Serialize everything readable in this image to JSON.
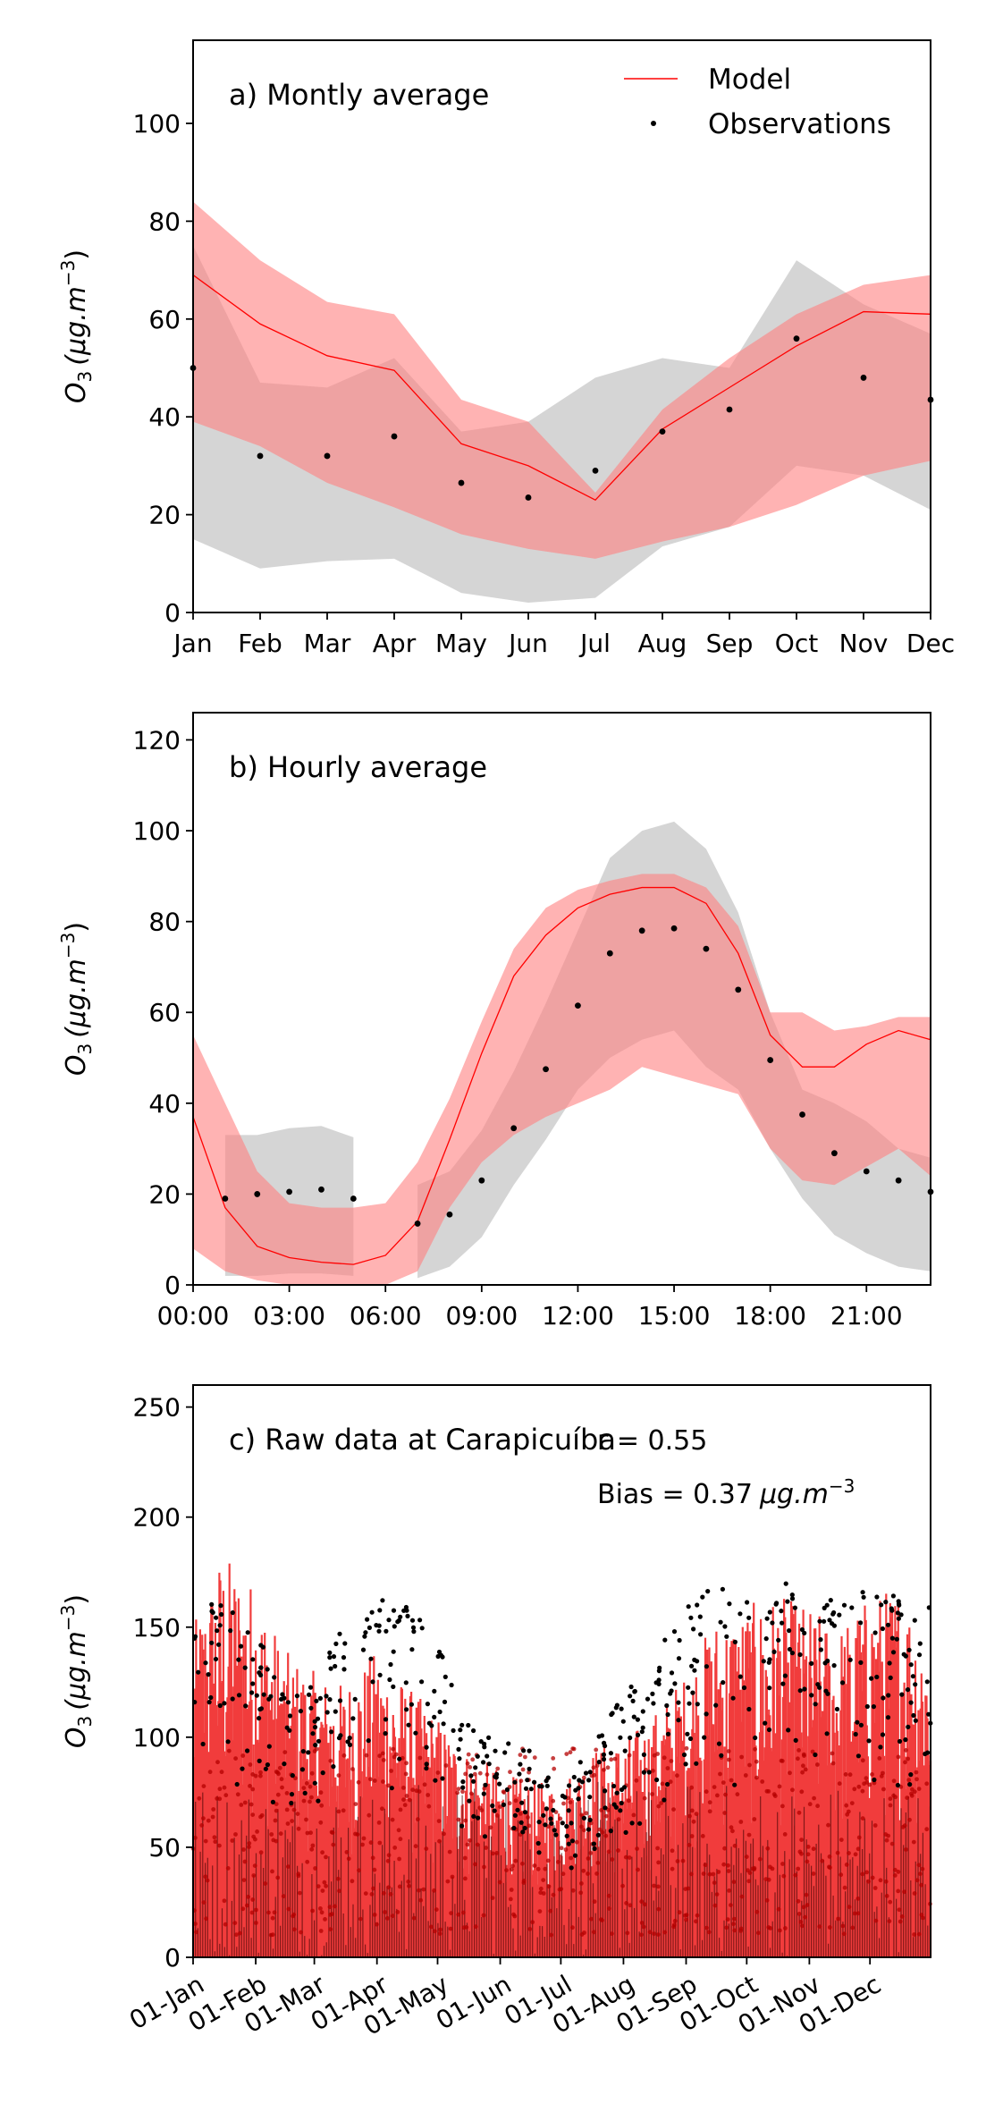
{
  "chart_data": [
    {
      "type": "line",
      "panel_title": "a) Montly average",
      "ylabel_text": "O",
      "ylabel_sub": "3",
      "ylabel_unit": "(μg.m",
      "ylabel_sup": "−3",
      "ylabel_close": ")",
      "ylim": [
        0,
        117
      ],
      "yticks": [
        0,
        20,
        40,
        60,
        80,
        100
      ],
      "categories": [
        "Jan",
        "Feb",
        "Mar",
        "Apr",
        "May",
        "Jun",
        "Jul",
        "Aug",
        "Sep",
        "Oct",
        "Nov",
        "Dec"
      ],
      "legend": {
        "placement": "upper-right",
        "model": "Model",
        "observations": "Observations"
      },
      "model": {
        "mean": [
          69,
          59,
          52.5,
          49.5,
          34.5,
          30,
          23,
          37.5,
          46,
          54.5,
          61.5,
          61
        ],
        "band_upper": [
          84,
          72,
          63.5,
          61,
          43.5,
          39,
          24.5,
          41.5,
          52,
          61,
          67,
          69
        ],
        "band_lower": [
          39,
          34,
          26.5,
          21.5,
          16,
          13,
          11,
          14.5,
          17.5,
          22,
          28,
          31
        ]
      },
      "observations": {
        "mean": [
          50,
          32,
          32,
          36,
          26.5,
          23.5,
          29,
          37,
          41.5,
          56,
          48,
          43.5
        ],
        "band_upper": [
          75,
          47,
          46,
          52,
          37,
          39,
          48,
          52,
          50,
          72,
          63,
          57
        ],
        "band_lower": [
          15,
          9,
          10.5,
          11,
          4,
          2,
          3,
          13.5,
          17.5,
          30,
          28,
          21
        ]
      }
    },
    {
      "type": "line",
      "panel_title": "b) Hourly average",
      "ylabel_text": "O",
      "ylabel_sub": "3",
      "ylabel_unit": "(μg.m",
      "ylabel_sup": "−3",
      "ylabel_close": ")",
      "ylim": [
        0,
        126
      ],
      "yticks": [
        0,
        20,
        40,
        60,
        80,
        100,
        120
      ],
      "xlim": [
        0,
        23
      ],
      "xticks": [
        0,
        3,
        6,
        9,
        12,
        15,
        18,
        21
      ],
      "xtick_labels": [
        "00:00",
        "03:00",
        "06:00",
        "09:00",
        "12:00",
        "15:00",
        "18:00",
        "21:00"
      ],
      "model": {
        "x": [
          0,
          1,
          2,
          3,
          4,
          5,
          6,
          7,
          8,
          9,
          10,
          11,
          12,
          13,
          14,
          15,
          16,
          17,
          18,
          19,
          20,
          21,
          22,
          23
        ],
        "mean": [
          37,
          17,
          8.5,
          6,
          5,
          4.5,
          6.5,
          14,
          32,
          51,
          68,
          77,
          83,
          86,
          87.5,
          87.5,
          84,
          73,
          55,
          48,
          48,
          53,
          56,
          54
        ],
        "band_upper": [
          55,
          40,
          25,
          18,
          17,
          17,
          18,
          27,
          41,
          58,
          74,
          83,
          87,
          89,
          90.5,
          90.5,
          87.5,
          79,
          60,
          60,
          56,
          57,
          59,
          59
        ],
        "band_lower": [
          8,
          3,
          1,
          0,
          0,
          0,
          0,
          3,
          17,
          27,
          33,
          37,
          40,
          43,
          48,
          46,
          44,
          42,
          30,
          23,
          22,
          26,
          30,
          24
        ]
      },
      "observations": {
        "x": [
          1,
          2,
          3,
          4,
          5,
          7,
          8,
          9,
          10,
          11,
          12,
          13,
          14,
          15,
          16,
          17,
          18,
          19,
          20,
          21,
          22,
          23
        ],
        "mean": [
          19,
          20,
          20.5,
          21,
          19,
          13.5,
          15.5,
          23,
          34.5,
          47.5,
          61.5,
          73,
          78,
          78.5,
          74,
          65,
          49.5,
          37.5,
          29,
          25,
          23,
          20.5
        ],
        "band_upper": [
          33,
          33,
          34.5,
          35,
          32.5,
          22,
          25,
          34,
          47,
          62,
          78,
          94,
          100,
          102,
          96,
          82,
          60,
          43,
          40,
          36,
          30,
          28
        ],
        "band_lower": [
          2,
          2,
          2.5,
          2.5,
          2,
          1.5,
          4,
          10.5,
          22,
          32,
          43,
          50,
          54,
          56,
          48,
          43,
          30,
          19,
          11,
          7,
          4,
          3
        ]
      }
    },
    {
      "type": "scatter",
      "panel_title": "c) Raw data at Carapicuíba",
      "r_label": "r = 0.55",
      "bias_prefix": "Bias = 0.37",
      "bias_unit": "μg.m",
      "bias_sup": "−3",
      "ylabel_text": "O",
      "ylabel_sub": "3",
      "ylabel_unit": "(μg.m",
      "ylabel_sup": "−3",
      "ylabel_close": ")",
      "ylim": [
        0,
        260
      ],
      "yticks": [
        0,
        50,
        100,
        150,
        200,
        250
      ],
      "xlim": [
        "2000-01-01",
        "2000-12-31"
      ],
      "xtick_labels": [
        "01-Jan",
        "01-Feb",
        "01-Mar",
        "01-Apr",
        "01-May",
        "01-Jun",
        "01-Jul",
        "01-Aug",
        "01-Sep",
        "01-Oct",
        "01-Nov",
        "01-Dec"
      ],
      "xtick_dates": [
        "2000-01-01",
        "2000-02-01",
        "2000-03-01",
        "2000-04-01",
        "2000-05-01",
        "2000-06-01",
        "2000-07-01",
        "2000-08-01",
        "2000-09-01",
        "2000-10-01",
        "2000-11-01",
        "2000-12-01"
      ],
      "model_peak_envelope": {
        "dates": [
          "2000-01-01",
          "2000-01-15",
          "2000-02-01",
          "2000-02-15",
          "2000-03-01",
          "2000-03-15",
          "2000-04-01",
          "2000-04-15",
          "2000-05-01",
          "2000-05-15",
          "2000-06-01",
          "2000-06-15",
          "2000-07-01",
          "2000-07-15",
          "2000-08-01",
          "2000-08-15",
          "2000-09-01",
          "2000-09-15",
          "2000-10-01",
          "2000-10-15",
          "2000-11-01",
          "2000-11-15",
          "2000-12-01",
          "2000-12-15",
          "2000-12-31"
        ],
        "values": [
          150,
          185,
          170,
          140,
          130,
          125,
          140,
          125,
          110,
          95,
          85,
          80,
          80,
          95,
          100,
          110,
          130,
          155,
          160,
          165,
          160,
          150,
          165,
          170,
          150
        ]
      },
      "observation_peak_envelope": {
        "dates": [
          "2000-01-01",
          "2000-01-15",
          "2000-02-01",
          "2000-02-15",
          "2000-03-01",
          "2000-03-15",
          "2000-04-01",
          "2000-04-15",
          "2000-05-01",
          "2000-05-15",
          "2000-06-01",
          "2000-06-15",
          "2000-07-01",
          "2000-07-15",
          "2000-08-01",
          "2000-08-15",
          "2000-09-01",
          "2000-09-15",
          "2000-10-01",
          "2000-10-15",
          "2000-11-01",
          "2000-11-15",
          "2000-12-01",
          "2000-12-15",
          "2000-12-31"
        ],
        "values": [
          165,
          165,
          150,
          120,
          125,
          150,
          165,
          160,
          150,
          110,
          100,
          95,
          75,
          95,
          120,
          135,
          160,
          170,
          165,
          170,
          170,
          160,
          170,
          165,
          170
        ]
      }
    }
  ],
  "colors": {
    "model_line": "#ff0000",
    "model_band": "#ff8080",
    "obs_band": "#b3b3b3",
    "obs_point": "#000000",
    "model_raw_bar": "#ee1a1a",
    "model_raw_dot": "#b40000"
  }
}
